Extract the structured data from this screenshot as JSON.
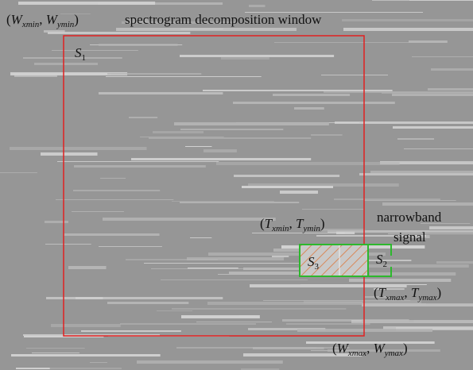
{
  "labels": {
    "window_min": [
      "(",
      "W",
      "xmin",
      ", ",
      "W",
      "ymin",
      ")"
    ],
    "title": "spectrogram decomposition window",
    "s1": [
      "S",
      "1"
    ],
    "target_min": [
      "(",
      "T",
      "xmin",
      ", ",
      "T",
      "ymin",
      ")"
    ],
    "narrowband": [
      "narrowband",
      "signal"
    ],
    "s3": [
      "S",
      "3"
    ],
    "s2": [
      "S",
      "2"
    ],
    "target_max": [
      "(",
      "T",
      "xmax",
      ", ",
      "T",
      "ymax",
      ")"
    ],
    "window_max": [
      "(",
      "W",
      "xmax",
      ", ",
      "W",
      "ymax",
      ")"
    ]
  }
}
